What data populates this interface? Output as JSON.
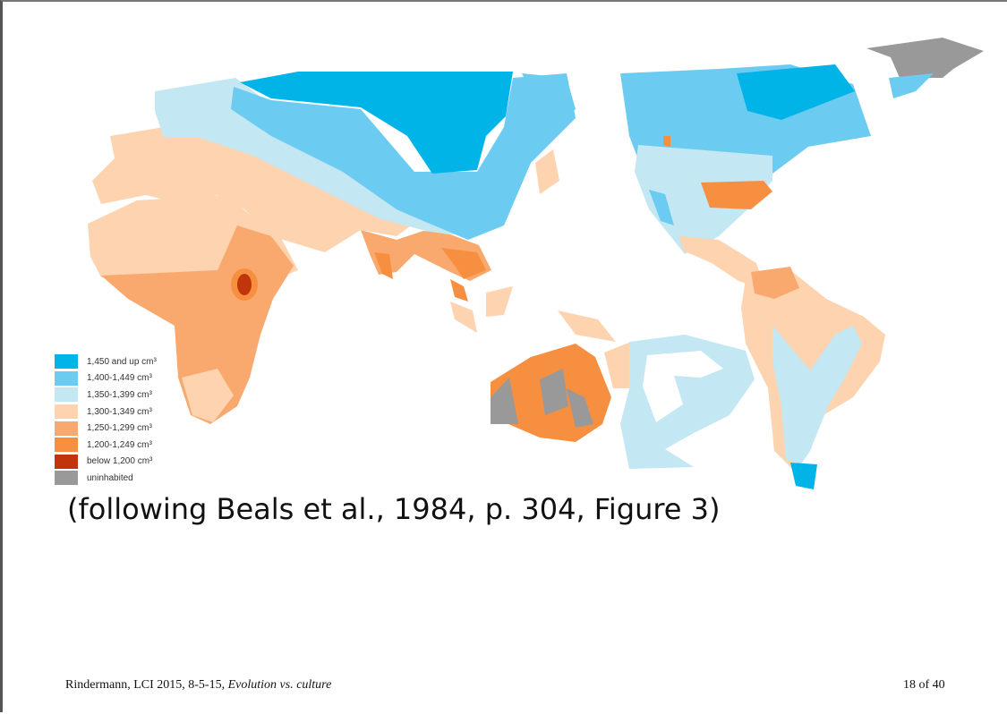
{
  "legend": {
    "items": [
      {
        "label": "1,450 and up cm³",
        "color": "#00b4e8"
      },
      {
        "label": "1,400-1,449 cm³",
        "color": "#6ccbf0"
      },
      {
        "label": "1,350-1,399 cm³",
        "color": "#c3e7f3"
      },
      {
        "label": "1,300-1,349 cm³",
        "color": "#fdd3b0"
      },
      {
        "label": "1,250-1,299 cm³",
        "color": "#f9a96e"
      },
      {
        "label": "1,200-1,249 cm³",
        "color": "#f78f40"
      },
      {
        "label": "below 1,200 cm³",
        "color": "#c0360a"
      },
      {
        "label": "uninhabited",
        "color": "#999999"
      }
    ]
  },
  "citation": "(following Beals et al., 1984, p. 304, Figure 3)",
  "footer": {
    "author": "Rindermann, LCI 2015, 8-5-15,",
    "title": "Evolution vs. culture",
    "page": "18 of 40"
  }
}
